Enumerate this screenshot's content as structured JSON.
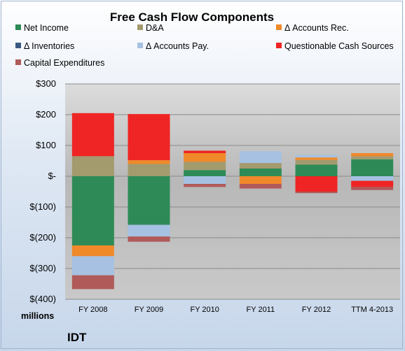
{
  "company": "IDT",
  "chart_data": {
    "type": "bar",
    "stacked": true,
    "title": "Free Cash Flow Components",
    "ylabel": "",
    "units_label": "millions",
    "categories": [
      "FY 2008",
      "FY 2009",
      "FY 2010",
      "FY 2011",
      "FY 2012",
      "TTM 4-2013"
    ],
    "ylim": [
      -400,
      300
    ],
    "yticks": [
      300,
      200,
      100,
      0,
      -100,
      -200,
      -300,
      -400
    ],
    "ytick_labels": [
      "$300",
      "$200",
      "$100",
      "$-",
      "$(100)",
      "$(200)",
      "$(300)",
      "$(400)"
    ],
    "grid": true,
    "legend_position": "top",
    "series": [
      {
        "name": "Net Income",
        "color": "#2e8b57",
        "values": [
          -225,
          -158,
          20,
          25,
          38,
          55
        ]
      },
      {
        "name": "D&A",
        "color": "#a39a6e",
        "values": [
          65,
          40,
          27,
          18,
          15,
          10
        ]
      },
      {
        "name": "Δ Accounts Rec.",
        "color": "#f0892a",
        "values": [
          -35,
          12,
          28,
          -25,
          8,
          10
        ]
      },
      {
        "name": "Δ Inventories",
        "color": "#3b5a82",
        "values": [
          0,
          0,
          0,
          0,
          0,
          0
        ]
      },
      {
        "name": "Δ Accounts Pay.",
        "color": "#a6c1e2",
        "values": [
          -62,
          -38,
          -25,
          38,
          8,
          -15
        ]
      },
      {
        "name": "Questionable Cash Sources",
        "color": "#ee2524",
        "values": [
          140,
          150,
          8,
          0,
          -50,
          -20
        ]
      },
      {
        "name": "Capital Expenditures",
        "color": "#b05a5a",
        "values": [
          -45,
          -17,
          -10,
          -15,
          -5,
          -10
        ]
      }
    ]
  }
}
